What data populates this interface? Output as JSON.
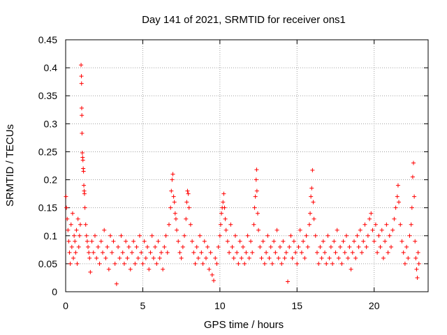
{
  "chart_data": {
    "type": "scatter",
    "title": "Day 141 of 2021, SRMTID for receiver ons1",
    "xlabel": "GPS time / hours",
    "ylabel": "SRMTID / TECUs",
    "xlim": [
      0,
      23.5
    ],
    "ylim": [
      0,
      0.45
    ],
    "x_ticks": [
      0,
      5,
      10,
      15,
      20
    ],
    "x_tick_labels": [
      "0",
      "5",
      "10",
      "15",
      "20"
    ],
    "y_ticks": [
      0,
      0.05,
      0.1,
      0.15,
      0.2,
      0.25,
      0.3,
      0.35,
      0.4,
      0.45
    ],
    "y_tick_labels": [
      "0",
      "0.05",
      "0.1",
      "0.15",
      "0.2",
      "0.25",
      "0.3",
      "0.35",
      "0.4",
      "0.45"
    ],
    "grid": true,
    "marker": "+",
    "color": "#ff0000",
    "series": [
      {
        "name": "SRMTID",
        "points": [
          [
            0.02,
            0.17
          ],
          [
            0.05,
            0.15
          ],
          [
            0.1,
            0.13
          ],
          [
            0.15,
            0.11
          ],
          [
            0.2,
            0.09
          ],
          [
            0.25,
            0.07
          ],
          [
            0.3,
            0.05
          ],
          [
            0.35,
            0.12
          ],
          [
            0.4,
            0.08
          ],
          [
            0.45,
            0.14
          ],
          [
            0.5,
            0.06
          ],
          [
            0.55,
            0.1
          ],
          [
            0.6,
            0.09
          ],
          [
            0.65,
            0.07
          ],
          [
            0.7,
            0.11
          ],
          [
            0.75,
            0.05
          ],
          [
            0.8,
            0.13
          ],
          [
            0.85,
            0.08
          ],
          [
            0.9,
            0.1
          ],
          [
            0.95,
            0.12
          ],
          [
            1.0,
            0.405
          ],
          [
            1.02,
            0.385
          ],
          [
            1.03,
            0.372
          ],
          [
            1.04,
            0.328
          ],
          [
            1.05,
            0.315
          ],
          [
            1.06,
            0.283
          ],
          [
            1.08,
            0.248
          ],
          [
            1.1,
            0.24
          ],
          [
            1.12,
            0.235
          ],
          [
            1.14,
            0.22
          ],
          [
            1.16,
            0.215
          ],
          [
            1.18,
            0.19
          ],
          [
            1.2,
            0.18
          ],
          [
            1.22,
            0.175
          ],
          [
            1.25,
            0.15
          ],
          [
            1.3,
            0.12
          ],
          [
            1.35,
            0.1
          ],
          [
            1.4,
            0.09
          ],
          [
            1.45,
            0.08
          ],
          [
            1.5,
            0.07
          ],
          [
            1.55,
            0.06
          ],
          [
            1.6,
            0.035
          ],
          [
            1.7,
            0.09
          ],
          [
            1.8,
            0.07
          ],
          [
            1.9,
            0.1
          ],
          [
            2.0,
            0.06
          ],
          [
            2.1,
            0.08
          ],
          [
            2.2,
            0.05
          ],
          [
            2.3,
            0.09
          ],
          [
            2.4,
            0.07
          ],
          [
            2.5,
            0.11
          ],
          [
            2.6,
            0.06
          ],
          [
            2.7,
            0.08
          ],
          [
            2.8,
            0.04
          ],
          [
            2.9,
            0.1
          ],
          [
            3.0,
            0.07
          ],
          [
            3.1,
            0.09
          ],
          [
            3.2,
            0.05
          ],
          [
            3.3,
            0.014
          ],
          [
            3.4,
            0.08
          ],
          [
            3.5,
            0.06
          ],
          [
            3.6,
            0.1
          ],
          [
            3.7,
            0.07
          ],
          [
            3.8,
            0.05
          ],
          [
            3.9,
            0.09
          ],
          [
            4.0,
            0.06
          ],
          [
            4.1,
            0.08
          ],
          [
            4.2,
            0.04
          ],
          [
            4.3,
            0.07
          ],
          [
            4.4,
            0.09
          ],
          [
            4.5,
            0.05
          ],
          [
            4.6,
            0.08
          ],
          [
            4.7,
            0.06
          ],
          [
            4.8,
            0.1
          ],
          [
            4.9,
            0.07
          ],
          [
            5.0,
            0.05
          ],
          [
            5.1,
            0.09
          ],
          [
            5.2,
            0.06
          ],
          [
            5.3,
            0.08
          ],
          [
            5.4,
            0.04
          ],
          [
            5.5,
            0.07
          ],
          [
            5.6,
            0.1
          ],
          [
            5.7,
            0.06
          ],
          [
            5.8,
            0.08
          ],
          [
            5.9,
            0.05
          ],
          [
            6.0,
            0.09
          ],
          [
            6.1,
            0.06
          ],
          [
            6.2,
            0.07
          ],
          [
            6.3,
            0.04
          ],
          [
            6.4,
            0.08
          ],
          [
            6.5,
            0.1
          ],
          [
            6.6,
            0.07
          ],
          [
            6.7,
            0.12
          ],
          [
            6.8,
            0.15
          ],
          [
            6.85,
            0.18
          ],
          [
            6.9,
            0.2
          ],
          [
            6.95,
            0.21
          ],
          [
            7.0,
            0.17
          ],
          [
            7.05,
            0.16
          ],
          [
            7.1,
            0.14
          ],
          [
            7.15,
            0.13
          ],
          [
            7.2,
            0.11
          ],
          [
            7.3,
            0.09
          ],
          [
            7.4,
            0.07
          ],
          [
            7.5,
            0.06
          ],
          [
            7.6,
            0.08
          ],
          [
            7.7,
            0.1
          ],
          [
            7.8,
            0.13
          ],
          [
            7.85,
            0.16
          ],
          [
            7.9,
            0.18
          ],
          [
            7.95,
            0.175
          ],
          [
            8.0,
            0.15
          ],
          [
            8.1,
            0.12
          ],
          [
            8.2,
            0.09
          ],
          [
            8.3,
            0.07
          ],
          [
            8.4,
            0.05
          ],
          [
            8.5,
            0.08
          ],
          [
            8.6,
            0.06
          ],
          [
            8.7,
            0.1
          ],
          [
            8.8,
            0.07
          ],
          [
            8.9,
            0.05
          ],
          [
            9.0,
            0.09
          ],
          [
            9.1,
            0.06
          ],
          [
            9.2,
            0.08
          ],
          [
            9.3,
            0.04
          ],
          [
            9.4,
            0.07
          ],
          [
            9.5,
            0.03
          ],
          [
            9.6,
            0.02
          ],
          [
            9.7,
            0.06
          ],
          [
            9.8,
            0.05
          ],
          [
            9.9,
            0.08
          ],
          [
            10.0,
            0.1
          ],
          [
            10.05,
            0.12
          ],
          [
            10.1,
            0.14
          ],
          [
            10.15,
            0.15
          ],
          [
            10.2,
            0.16
          ],
          [
            10.25,
            0.175
          ],
          [
            10.3,
            0.15
          ],
          [
            10.35,
            0.13
          ],
          [
            10.4,
            0.11
          ],
          [
            10.5,
            0.09
          ],
          [
            10.6,
            0.07
          ],
          [
            10.7,
            0.12
          ],
          [
            10.8,
            0.08
          ],
          [
            10.9,
            0.06
          ],
          [
            11.0,
            0.1
          ],
          [
            11.1,
            0.07
          ],
          [
            11.2,
            0.05
          ],
          [
            11.3,
            0.09
          ],
          [
            11.4,
            0.06
          ],
          [
            11.5,
            0.08
          ],
          [
            11.6,
            0.05
          ],
          [
            11.7,
            0.07
          ],
          [
            11.8,
            0.1
          ],
          [
            11.9,
            0.06
          ],
          [
            12.0,
            0.09
          ],
          [
            12.1,
            0.07
          ],
          [
            12.2,
            0.12
          ],
          [
            12.25,
            0.15
          ],
          [
            12.3,
            0.17
          ],
          [
            12.35,
            0.2
          ],
          [
            12.38,
            0.218
          ],
          [
            12.4,
            0.18
          ],
          [
            12.45,
            0.14
          ],
          [
            12.5,
            0.11
          ],
          [
            12.6,
            0.08
          ],
          [
            12.7,
            0.06
          ],
          [
            12.8,
            0.09
          ],
          [
            12.9,
            0.05
          ],
          [
            13.0,
            0.07
          ],
          [
            13.1,
            0.1
          ],
          [
            13.2,
            0.06
          ],
          [
            13.3,
            0.08
          ],
          [
            13.4,
            0.05
          ],
          [
            13.5,
            0.09
          ],
          [
            13.6,
            0.07
          ],
          [
            13.7,
            0.11
          ],
          [
            13.8,
            0.06
          ],
          [
            13.9,
            0.08
          ],
          [
            14.0,
            0.05
          ],
          [
            14.1,
            0.09
          ],
          [
            14.2,
            0.06
          ],
          [
            14.3,
            0.07
          ],
          [
            14.4,
            0.018
          ],
          [
            14.5,
            0.08
          ],
          [
            14.6,
            0.1
          ],
          [
            14.7,
            0.06
          ],
          [
            14.8,
            0.09
          ],
          [
            14.9,
            0.07
          ],
          [
            15.0,
            0.05
          ],
          [
            15.1,
            0.08
          ],
          [
            15.2,
            0.11
          ],
          [
            15.3,
            0.07
          ],
          [
            15.4,
            0.09
          ],
          [
            15.5,
            0.06
          ],
          [
            15.6,
            0.1
          ],
          [
            15.7,
            0.08
          ],
          [
            15.8,
            0.12
          ],
          [
            15.85,
            0.14
          ],
          [
            15.9,
            0.17
          ],
          [
            15.95,
            0.185
          ],
          [
            16.0,
            0.217
          ],
          [
            16.05,
            0.16
          ],
          [
            16.1,
            0.13
          ],
          [
            16.2,
            0.1
          ],
          [
            16.3,
            0.07
          ],
          [
            16.4,
            0.05
          ],
          [
            16.5,
            0.08
          ],
          [
            16.6,
            0.06
          ],
          [
            16.7,
            0.09
          ],
          [
            16.8,
            0.07
          ],
          [
            16.9,
            0.05
          ],
          [
            17.0,
            0.1
          ],
          [
            17.1,
            0.06
          ],
          [
            17.2,
            0.08
          ],
          [
            17.3,
            0.05
          ],
          [
            17.4,
            0.09
          ],
          [
            17.5,
            0.07
          ],
          [
            17.6,
            0.11
          ],
          [
            17.7,
            0.06
          ],
          [
            17.8,
            0.08
          ],
          [
            17.9,
            0.05
          ],
          [
            18.0,
            0.09
          ],
          [
            18.1,
            0.07
          ],
          [
            18.2,
            0.1
          ],
          [
            18.3,
            0.06
          ],
          [
            18.4,
            0.08
          ],
          [
            18.5,
            0.04
          ],
          [
            18.6,
            0.07
          ],
          [
            18.7,
            0.09
          ],
          [
            18.8,
            0.06
          ],
          [
            18.9,
            0.1
          ],
          [
            19.0,
            0.08
          ],
          [
            19.1,
            0.11
          ],
          [
            19.2,
            0.07
          ],
          [
            19.3,
            0.09
          ],
          [
            19.4,
            0.12
          ],
          [
            19.5,
            0.08
          ],
          [
            19.6,
            0.1
          ],
          [
            19.7,
            0.13
          ],
          [
            19.8,
            0.14
          ],
          [
            19.9,
            0.11
          ],
          [
            20.0,
            0.09
          ],
          [
            20.1,
            0.12
          ],
          [
            20.2,
            0.07
          ],
          [
            20.3,
            0.1
          ],
          [
            20.4,
            0.08
          ],
          [
            20.5,
            0.11
          ],
          [
            20.6,
            0.06
          ],
          [
            20.7,
            0.09
          ],
          [
            20.8,
            0.12
          ],
          [
            20.9,
            0.07
          ],
          [
            21.0,
            0.1
          ],
          [
            21.1,
            0.08
          ],
          [
            21.2,
            0.11
          ],
          [
            21.3,
            0.13
          ],
          [
            21.4,
            0.15
          ],
          [
            21.5,
            0.17
          ],
          [
            21.55,
            0.19
          ],
          [
            21.6,
            0.16
          ],
          [
            21.7,
            0.12
          ],
          [
            21.8,
            0.09
          ],
          [
            21.9,
            0.07
          ],
          [
            22.0,
            0.05
          ],
          [
            22.1,
            0.08
          ],
          [
            22.2,
            0.06
          ],
          [
            22.3,
            0.1
          ],
          [
            22.4,
            0.12
          ],
          [
            22.45,
            0.15
          ],
          [
            22.5,
            0.205
          ],
          [
            22.55,
            0.23
          ],
          [
            22.6,
            0.17
          ],
          [
            22.65,
            0.09
          ],
          [
            22.7,
            0.06
          ],
          [
            22.75,
            0.04
          ],
          [
            22.8,
            0.025
          ],
          [
            22.85,
            0.07
          ],
          [
            22.9,
            0.05
          ]
        ]
      }
    ]
  }
}
